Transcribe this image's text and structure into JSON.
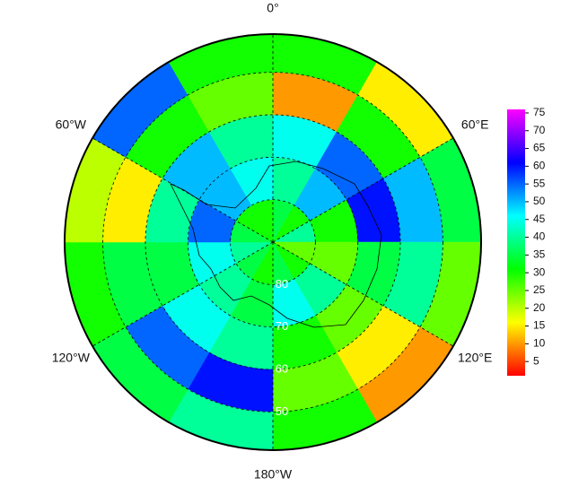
{
  "chart_data": {
    "type": "polar-grid",
    "lat_edges": [
      -90,
      -80,
      -70,
      -60,
      -50,
      -41
    ],
    "lon_edges": [
      0,
      30,
      60,
      90,
      120,
      150,
      180,
      210,
      240,
      270,
      300,
      330,
      360
    ],
    "values": [
      [
        35,
        30,
        40,
        25,
        30,
        35,
        30,
        35,
        40,
        35,
        30,
        30
      ],
      [
        40,
        50,
        30,
        25,
        40,
        45,
        35,
        40,
        45,
        55,
        50,
        45
      ],
      [
        45,
        55,
        60,
        35,
        25,
        30,
        40,
        45,
        35,
        40,
        50,
        40
      ],
      [
        10,
        30,
        50,
        40,
        15,
        25,
        60,
        55,
        35,
        15,
        30,
        25
      ],
      [
        30,
        15,
        35,
        25,
        10,
        30,
        40,
        35,
        30,
        20,
        55,
        30
      ]
    ],
    "colormap": [
      "#ff0000",
      "#ffff00",
      "#00ff00",
      "#00ffff",
      "#0000ff",
      "#ff00ff"
    ],
    "clim": [
      1,
      76
    ],
    "cticks": [
      5,
      10,
      15,
      20,
      25,
      30,
      35,
      40,
      45,
      50,
      55,
      60,
      65,
      70,
      75
    ],
    "lon_ticks": [
      {
        "value": 0,
        "label": "0°"
      },
      {
        "value": 60,
        "label": "60°E"
      },
      {
        "value": 120,
        "label": "120°E"
      },
      {
        "value": 180,
        "label": "180°W"
      },
      {
        "value": 240,
        "label": "120°W"
      },
      {
        "value": 300,
        "label": "60°W"
      }
    ],
    "lat_ticks": [
      {
        "value": -80,
        "label": "80"
      },
      {
        "value": -70,
        "label": "70"
      },
      {
        "value": -60,
        "label": "60"
      },
      {
        "value": -50,
        "label": "50"
      }
    ]
  }
}
